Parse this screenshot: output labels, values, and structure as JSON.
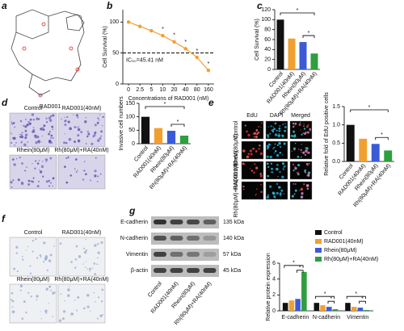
{
  "panel_letters": [
    "a",
    "b",
    "c",
    "d",
    "e",
    "f",
    "g"
  ],
  "structure_name": "RAD001",
  "invasion_images": [
    "Control",
    "RAD001(40nM)",
    "Rhein(80μM)",
    "Rh(80μM)+RA(40nM)"
  ],
  "edu_images": {
    "columns": [
      "EdU",
      "DAPI",
      "Merged"
    ],
    "rows": [
      "Control",
      "Rhein(80μM)",
      "RAD001(40nM)",
      "Rh(80μM)+RA(40nM)"
    ]
  },
  "wound_images": [
    "Control",
    "RAD001(40nM)",
    "Rhein(80μM)",
    "Rh(80μM)+RA(40nM)"
  ],
  "western_blot": {
    "proteins": [
      "E-cadherin",
      "N-cadherin",
      "Vimentin",
      "β-actin"
    ],
    "sizes": [
      "135 kDa",
      "140 kDa",
      "57 kDa",
      "45 kDa"
    ],
    "lanes": [
      "Control",
      "RAD001(40nM)",
      "Rhein(80μM)",
      "Rh(80μM)+RA(40nM)"
    ]
  },
  "chart_data": [
    {
      "type": "line",
      "categories": [
        "0",
        "2.5",
        "5",
        "10",
        "20",
        "40",
        "80",
        "160"
      ],
      "values": [
        100,
        93,
        86,
        78,
        68,
        57,
        43,
        22
      ],
      "color": "#f0a030",
      "ylim": [
        0,
        120
      ],
      "yticks": [
        0,
        50,
        100
      ],
      "ylabel": "Cell Survival (%)",
      "xlabel": "Concentrations of RAD001 (nM)",
      "reference_line": 50,
      "reference_label": "IC₅₀=45.41 nM",
      "annotations": [
        "*",
        "*",
        "*",
        "*",
        "*"
      ]
    },
    {
      "type": "bar",
      "categories": [
        "Control",
        "RAD001(40nM)",
        "Rhein(80μM)",
        "Rh(80μM)+RA(40nM)"
      ],
      "values": [
        100,
        62,
        55,
        32
      ],
      "colors": [
        "#111111",
        "#f0a030",
        "#3b5bd6",
        "#2e9e3e"
      ],
      "ylim": [
        0,
        120
      ],
      "yticks": [
        0,
        20,
        40,
        60,
        80,
        100,
        120
      ],
      "ylabel": "Cell Survival (%)",
      "annotations": [
        "*",
        "*"
      ]
    },
    {
      "type": "bar",
      "categories": [
        "Control",
        "RAD001(40nM)",
        "Rhein(80μM)",
        "Rh(80μM)+RA(40nM)"
      ],
      "values": [
        100,
        58,
        48,
        30
      ],
      "colors": [
        "#111111",
        "#f0a030",
        "#3b5bd6",
        "#2e9e3e"
      ],
      "ylim": [
        0,
        150
      ],
      "yticks": [
        0,
        50,
        100,
        150
      ],
      "ylabel": "Invasive cell numbers",
      "annotations": [
        "*",
        "*"
      ]
    },
    {
      "type": "bar",
      "categories": [
        "Control",
        "RAD001(40nM)",
        "Rhein(80μM)",
        "Rh(80μM)+RA(40nM)"
      ],
      "values": [
        1.0,
        0.62,
        0.48,
        0.3
      ],
      "colors": [
        "#111111",
        "#f0a030",
        "#3b5bd6",
        "#2e9e3e"
      ],
      "ylim": [
        0,
        1.5
      ],
      "yticks": [
        {
          "value": 0,
          "label": "0.0"
        },
        0.5,
        {
          "value": 1,
          "label": "1.0"
        },
        1.5
      ],
      "ylabel": "Relative fold of EdU positive cells",
      "annotations": [
        "*",
        "*"
      ]
    },
    {
      "type": "grouped_bar",
      "categories": [
        "E-cadherin",
        "N-cadherin",
        "Vimentin"
      ],
      "series": [
        {
          "name": "Control",
          "color": "#111111",
          "values": [
            1,
            1,
            1
          ]
        },
        {
          "name": "RAD001(40nM)",
          "color": "#f0a030",
          "values": [
            1.3,
            0.7,
            0.5
          ]
        },
        {
          "name": "Rhein(80μM)",
          "color": "#3b5bd6",
          "values": [
            1.5,
            0.5,
            0.4
          ]
        },
        {
          "name": "Rh(80μM)+RA(40nM)",
          "color": "#2e9e3e",
          "values": [
            4.9,
            0.2,
            0.1
          ]
        }
      ],
      "ylim": [
        0,
        6
      ],
      "yticks": [
        0,
        2,
        4,
        6
      ],
      "ylabel": "Relative protein expression",
      "annotations": [
        "*",
        "*",
        "*",
        "*",
        "*",
        "*"
      ]
    }
  ]
}
